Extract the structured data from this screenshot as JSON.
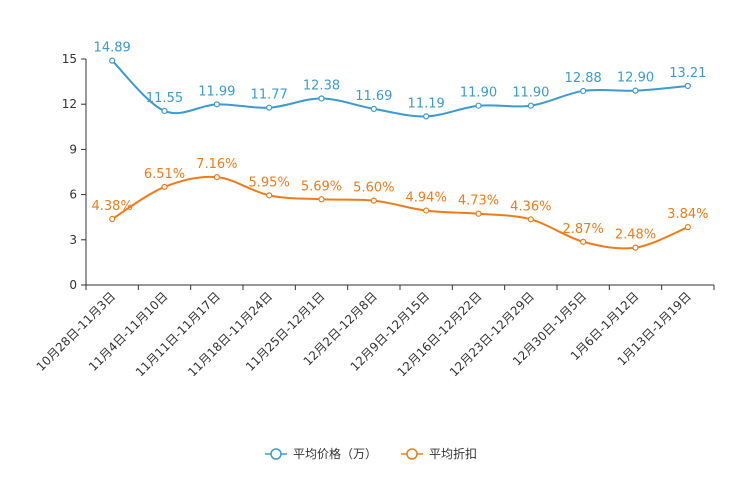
{
  "chart_data": {
    "type": "line",
    "categories": [
      "10月28日-11月3日",
      "11月4日-11月10日",
      "11月11日-11月17日",
      "11月18日-11月24日",
      "11月25日-12月1日",
      "12月2日-12月8日",
      "12月9日-12月15日",
      "12月16日-12月22日",
      "12月23日-12月29日",
      "12月30日-1月5日",
      "1月6日-1月12日",
      "1月13日-1月19日"
    ],
    "ylim": [
      0,
      15
    ],
    "yticks": [
      0,
      3,
      6,
      9,
      12,
      15
    ],
    "series": [
      {
        "name": "平均价格（万）",
        "color": "#3a9bd2",
        "values": [
          14.89,
          11.55,
          11.99,
          11.77,
          12.38,
          11.69,
          11.19,
          11.9,
          11.9,
          12.88,
          12.9,
          13.21
        ],
        "labels": [
          "14.89",
          "11.55",
          "11.99",
          "11.77",
          "12.38",
          "11.69",
          "11.19",
          "11.90",
          "11.90",
          "12.88",
          "12.90",
          "13.21"
        ]
      },
      {
        "name": "平均折扣",
        "color": "#f07b19",
        "values": [
          4.38,
          6.51,
          7.16,
          5.95,
          5.69,
          5.6,
          4.94,
          4.73,
          4.36,
          2.87,
          2.48,
          3.84
        ],
        "labels": [
          "4.38%",
          "6.51%",
          "7.16%",
          "5.95%",
          "5.69%",
          "5.60%",
          "4.94%",
          "4.73%",
          "4.36%",
          "2.87%",
          "2.48%",
          "3.84%"
        ]
      }
    ],
    "legend_position": "bottom-center",
    "grid": false
  }
}
